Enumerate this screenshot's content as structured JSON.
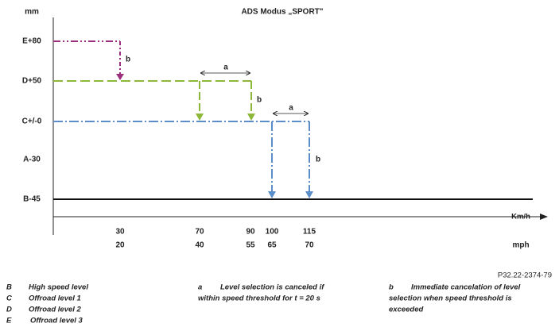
{
  "title": "ADS Modus „SPORT\"",
  "y_axis": {
    "unit": "mm",
    "levels": [
      "E+80",
      "D+50",
      "C+/-0",
      "A-30",
      "B-45"
    ]
  },
  "x_axis": {
    "unit_primary": "Km/h",
    "ticks_primary": [
      30,
      70,
      90,
      100,
      115
    ],
    "unit_secondary": "mph",
    "ticks_secondary": [
      20,
      40,
      55,
      65,
      70
    ]
  },
  "annotations": [
    "b",
    "a",
    "b",
    "a",
    "b"
  ],
  "figure_id": "P32.22-2374-79",
  "legend": {
    "levels": [
      {
        "key": "B",
        "text": "High speed level"
      },
      {
        "key": "C",
        "text": "Offroad level 1"
      },
      {
        "key": "D",
        "text": "Offroad level 2"
      },
      {
        "key": "E",
        "text": "Offroad level 3"
      }
    ],
    "notes": [
      {
        "key": "a",
        "lines": [
          "Level selection is canceled if",
          "within speed threshold for t = 20 s"
        ]
      },
      {
        "key": "b",
        "lines": [
          "Immediate cancelation of level",
          "selection when speed threshold is",
          "exceeded"
        ]
      }
    ]
  }
}
